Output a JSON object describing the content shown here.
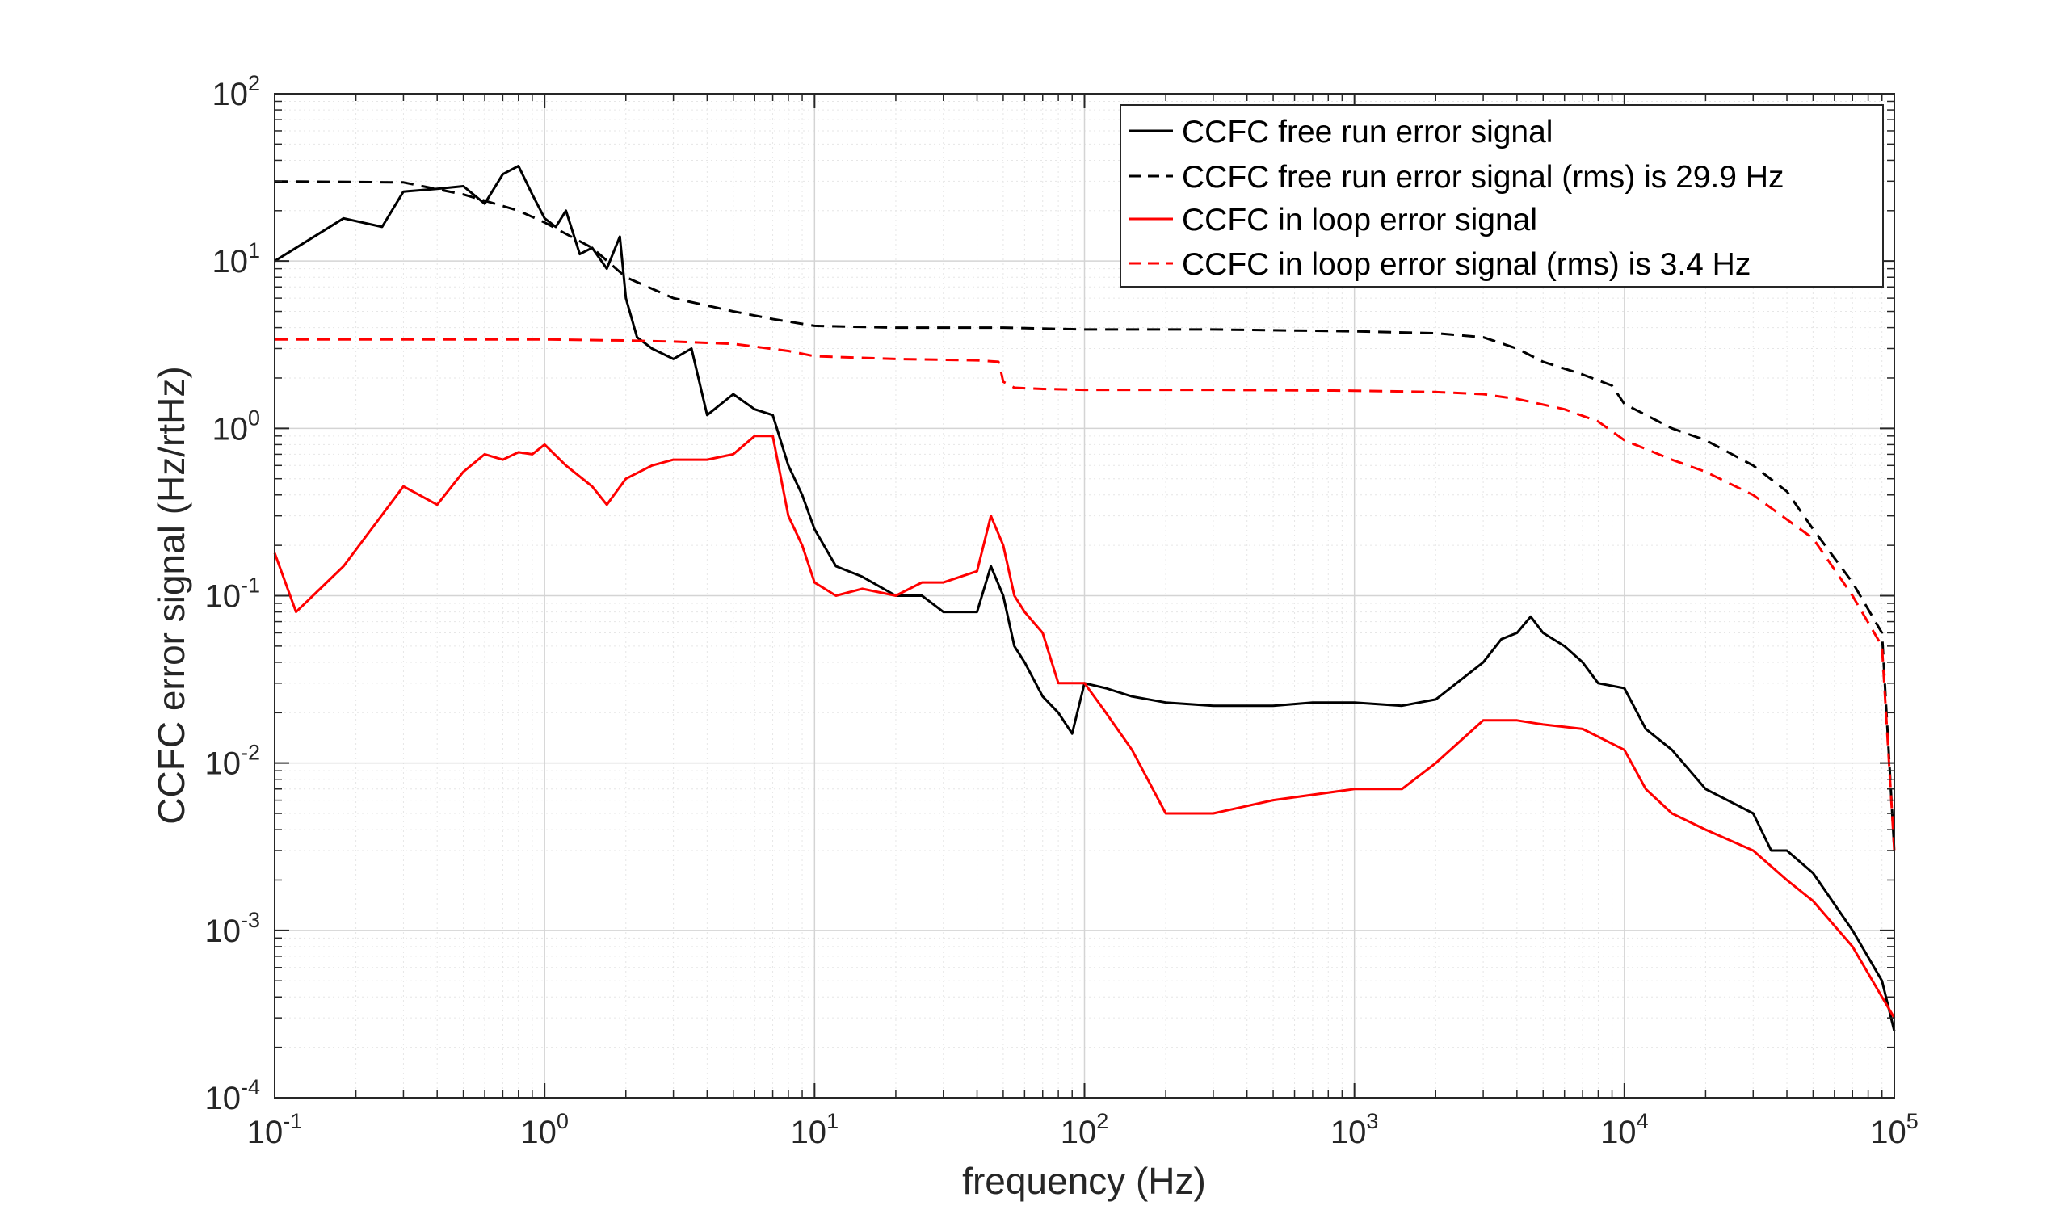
{
  "chart_data": {
    "type": "line",
    "xlabel": "frequency (Hz)",
    "ylabel": "CCFC error signal (Hz/rtHz)",
    "xscale": "log",
    "yscale": "log",
    "xlim": [
      0.1,
      100000
    ],
    "ylim": [
      0.0001,
      100
    ],
    "grid": true,
    "legend_position": "top-right",
    "x_ticks": [
      {
        "base": "10",
        "exp": "-1"
      },
      {
        "base": "10",
        "exp": "0"
      },
      {
        "base": "10",
        "exp": "1"
      },
      {
        "base": "10",
        "exp": "2"
      },
      {
        "base": "10",
        "exp": "3"
      },
      {
        "base": "10",
        "exp": "4"
      },
      {
        "base": "10",
        "exp": "5"
      }
    ],
    "y_ticks": [
      {
        "base": "10",
        "exp": "-4"
      },
      {
        "base": "10",
        "exp": "-3"
      },
      {
        "base": "10",
        "exp": "-2"
      },
      {
        "base": "10",
        "exp": "-1"
      },
      {
        "base": "10",
        "exp": "0"
      },
      {
        "base": "10",
        "exp": "1"
      },
      {
        "base": "10",
        "exp": "2"
      }
    ],
    "series": [
      {
        "name": "CCFC free run error signal",
        "color": "#000000",
        "dash": "solid",
        "x": [
          0.1,
          0.12,
          0.18,
          0.25,
          0.3,
          0.4,
          0.5,
          0.6,
          0.7,
          0.8,
          0.9,
          1.0,
          1.1,
          1.2,
          1.35,
          1.5,
          1.7,
          1.9,
          2.0,
          2.2,
          2.5,
          3,
          3.5,
          4,
          5,
          6,
          7,
          8,
          9,
          10,
          12,
          15,
          20,
          25,
          30,
          40,
          45,
          50,
          55,
          60,
          70,
          80,
          90,
          100,
          120,
          150,
          200,
          300,
          500,
          700,
          1000,
          1500,
          2000,
          3000,
          3500,
          4000,
          4500,
          5000,
          6000,
          7000,
          8000,
          10000,
          12000,
          15000,
          20000,
          30000,
          35000,
          40000,
          50000,
          70000,
          90000,
          100000
        ],
        "y": [
          10,
          12,
          18,
          16,
          26,
          27,
          28,
          22,
          33,
          37,
          25,
          18,
          16,
          20,
          11,
          12,
          9,
          14,
          6,
          3.5,
          3.0,
          2.6,
          3.0,
          1.2,
          1.6,
          1.3,
          1.2,
          0.6,
          0.4,
          0.25,
          0.15,
          0.13,
          0.1,
          0.1,
          0.08,
          0.08,
          0.15,
          0.1,
          0.05,
          0.04,
          0.025,
          0.02,
          0.015,
          0.03,
          0.028,
          0.025,
          0.023,
          0.022,
          0.022,
          0.023,
          0.023,
          0.022,
          0.024,
          0.04,
          0.055,
          0.06,
          0.075,
          0.06,
          0.05,
          0.04,
          0.03,
          0.028,
          0.016,
          0.012,
          0.007,
          0.005,
          0.003,
          0.003,
          0.0022,
          0.001,
          0.0005,
          0.00025
        ]
      },
      {
        "name": "CCFC free run error signal (rms) is 29.9 Hz",
        "color": "#000000",
        "dash": "dashed",
        "x": [
          0.1,
          0.3,
          0.5,
          0.8,
          1.0,
          1.5,
          2,
          3,
          5,
          7,
          10,
          20,
          50,
          100,
          300,
          1000,
          2000,
          3000,
          4000,
          5000,
          7000,
          9000,
          10000,
          15000,
          20000,
          30000,
          40000,
          50000,
          70000,
          90000,
          100000
        ],
        "y": [
          29.9,
          29.5,
          25,
          20,
          17,
          12,
          8,
          6,
          5,
          4.5,
          4.1,
          4.0,
          4.0,
          3.9,
          3.9,
          3.8,
          3.7,
          3.5,
          3.0,
          2.5,
          2.1,
          1.8,
          1.4,
          1.0,
          0.85,
          0.6,
          0.42,
          0.25,
          0.12,
          0.06,
          0.003
        ]
      },
      {
        "name": "CCFC in loop error signal",
        "color": "#ff0000",
        "dash": "solid",
        "x": [
          0.1,
          0.12,
          0.18,
          0.3,
          0.4,
          0.5,
          0.6,
          0.7,
          0.8,
          0.9,
          1.0,
          1.2,
          1.5,
          1.7,
          2.0,
          2.5,
          3,
          4,
          5,
          6,
          7,
          8,
          9,
          10,
          12,
          15,
          20,
          25,
          30,
          40,
          45,
          50,
          55,
          60,
          70,
          80,
          100,
          120,
          150,
          200,
          300,
          500,
          1000,
          1500,
          2000,
          3000,
          4000,
          5000,
          7000,
          10000,
          12000,
          15000,
          20000,
          30000,
          40000,
          50000,
          70000,
          90000,
          100000
        ],
        "y": [
          0.18,
          0.08,
          0.15,
          0.45,
          0.35,
          0.55,
          0.7,
          0.65,
          0.72,
          0.7,
          0.8,
          0.6,
          0.45,
          0.35,
          0.5,
          0.6,
          0.65,
          0.65,
          0.7,
          0.9,
          0.9,
          0.3,
          0.2,
          0.12,
          0.1,
          0.11,
          0.1,
          0.12,
          0.12,
          0.14,
          0.3,
          0.2,
          0.1,
          0.08,
          0.06,
          0.03,
          0.03,
          0.02,
          0.012,
          0.005,
          0.005,
          0.006,
          0.007,
          0.007,
          0.01,
          0.018,
          0.018,
          0.017,
          0.016,
          0.012,
          0.007,
          0.005,
          0.004,
          0.003,
          0.002,
          0.0015,
          0.0008,
          0.0004,
          0.0003
        ]
      },
      {
        "name": "CCFC in loop error signal (rms) is 3.4 Hz",
        "color": "#ff0000",
        "dash": "dashed",
        "x": [
          0.1,
          1,
          2,
          3,
          5,
          8,
          10,
          20,
          40,
          48,
          49,
          50,
          55,
          70,
          100,
          300,
          1000,
          2000,
          3000,
          4000,
          6000,
          8000,
          10000,
          15000,
          20000,
          30000,
          50000,
          70000,
          90000,
          100000
        ],
        "y": [
          3.4,
          3.4,
          3.35,
          3.3,
          3.2,
          2.9,
          2.7,
          2.6,
          2.55,
          2.5,
          2.2,
          1.9,
          1.75,
          1.72,
          1.7,
          1.7,
          1.68,
          1.65,
          1.6,
          1.5,
          1.3,
          1.1,
          0.85,
          0.65,
          0.55,
          0.4,
          0.22,
          0.1,
          0.05,
          0.003
        ]
      }
    ]
  }
}
